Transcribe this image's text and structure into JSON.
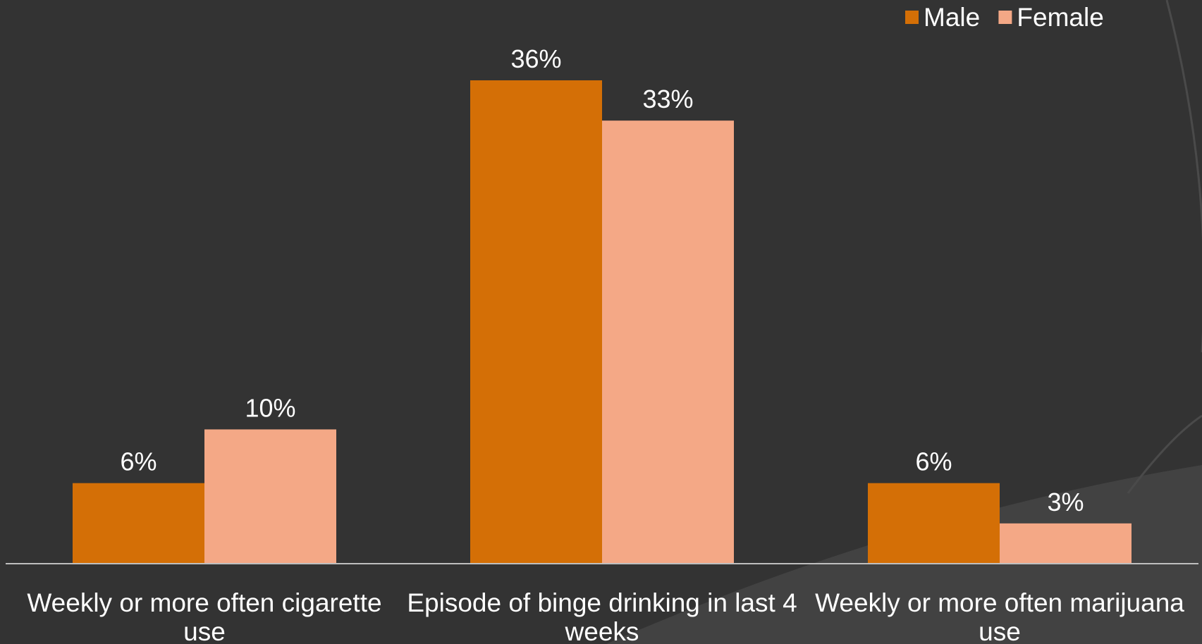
{
  "chart_data": {
    "type": "bar",
    "categories": [
      [
        "Weekly or more often cigarette",
        "use"
      ],
      [
        "Episode of binge drinking in last 4",
        "weeks"
      ],
      [
        "Weekly or more often marijuana",
        "use"
      ]
    ],
    "series": [
      {
        "name": "Male",
        "values": [
          6,
          36,
          6
        ],
        "labels": [
          "6%",
          "36%",
          "6%"
        ],
        "color": "#D46F06"
      },
      {
        "name": "Female",
        "values": [
          10,
          33,
          3
        ],
        "labels": [
          "10%",
          "33%",
          "3%"
        ],
        "color": "#F4A886"
      }
    ],
    "ylim": [
      0,
      36
    ],
    "grid": false,
    "legend_position": "top-right",
    "axis_color": "#BFBFBF",
    "background_color": "#333333",
    "text_color": "#FFFFFF"
  }
}
